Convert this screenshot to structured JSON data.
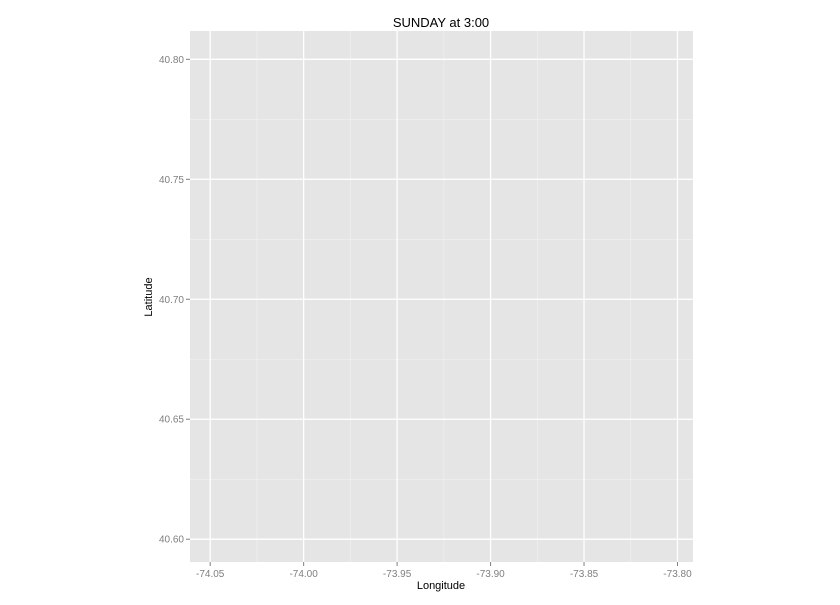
{
  "chart_data": {
    "type": "scatter",
    "title": "SUNDAY at 3:00",
    "xlabel": "Longitude",
    "ylabel": "Latitude",
    "xlim": [
      -74.0608,
      -73.7917
    ],
    "ylim": [
      40.5905,
      40.8118
    ],
    "x_ticks": [
      -74.05,
      -74.0,
      -73.95,
      -73.9,
      -73.85,
      -73.8
    ],
    "x_tick_labels": [
      "-74.05",
      "-74.00",
      "-73.95",
      "-73.90",
      "-73.85",
      "-73.80"
    ],
    "y_ticks": [
      40.6,
      40.65,
      40.7,
      40.75,
      40.8
    ],
    "y_tick_labels": [
      "40.60",
      "40.65",
      "40.70",
      "40.75",
      "40.80"
    ],
    "grid": true,
    "legend": "none",
    "series": [
      {
        "x": [],
        "y": []
      }
    ],
    "colors": {
      "panel_background": "#e5e5e5",
      "grid_major": "#ffffff",
      "grid_minor": "#f2f2f2",
      "tick_text": "#7f7f7f",
      "tick_mark": "#7f7f7f"
    }
  }
}
